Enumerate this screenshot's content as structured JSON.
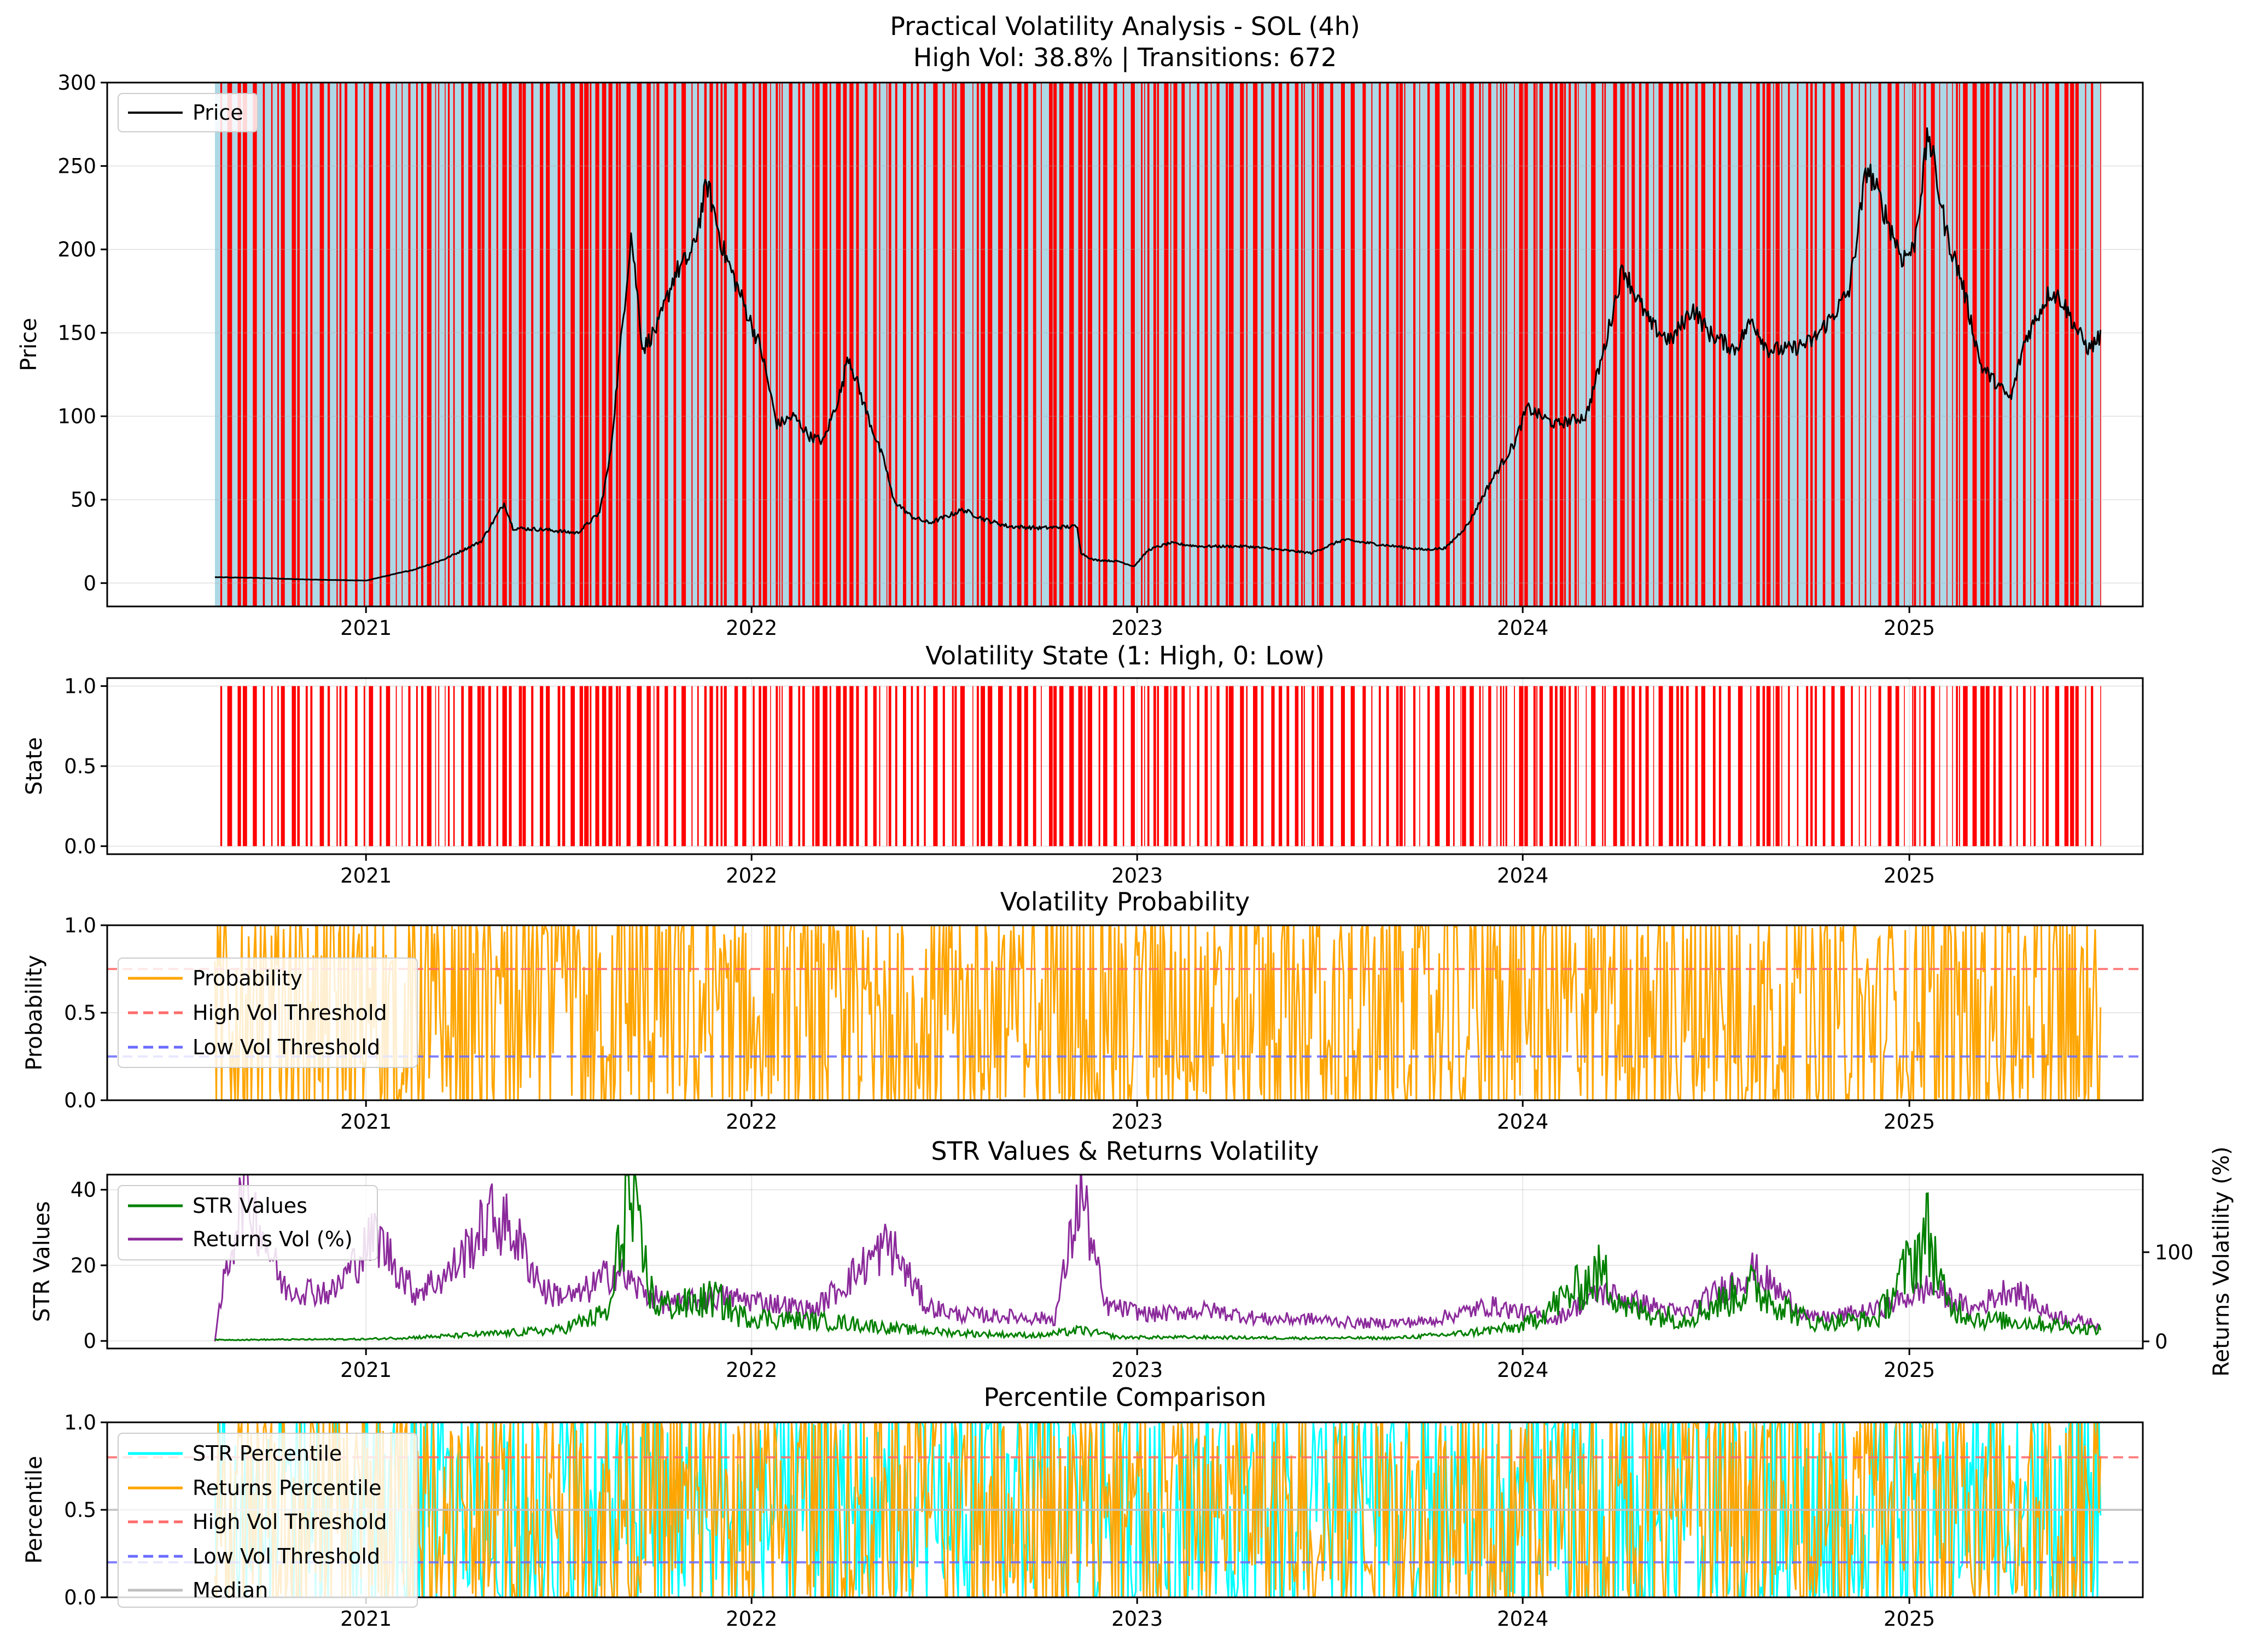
{
  "figure": {
    "title_line1": "Practical Volatility Analysis - SOL (4h)",
    "title_line2": "High Vol: 38.8% | Transitions: 672"
  },
  "colors": {
    "high_vol": "#ff0000",
    "low_vol": "#add8e6",
    "price": "#000000",
    "probability": "#ffa500",
    "high_threshold": "#ff6b6b",
    "low_threshold": "#6b6bff",
    "str_values": "#008000",
    "returns_vol": "#8b2a9b",
    "str_percentile": "#00ffff",
    "returns_percentile": "#ffa500",
    "median": "#c0c0c0"
  },
  "chart_data": [
    {
      "type": "line",
      "panel": "price",
      "title": "",
      "ylabel": "Price",
      "xlim": [
        "2020-05-01",
        "2025-08-10"
      ],
      "ylim": [
        -14,
        300
      ],
      "yticks": [
        0,
        50,
        100,
        150,
        200,
        250,
        300
      ],
      "xticks": [
        "2021",
        "2022",
        "2023",
        "2024",
        "2025"
      ],
      "background": "alternating high/low volatility regime shading",
      "legend": {
        "position": "upper-left",
        "entries": [
          "Price"
        ]
      },
      "series": [
        {
          "name": "Price",
          "x": [
            "2020-08-11",
            "2020-09-15",
            "2020-11-01",
            "2021-01-01",
            "2021-02-15",
            "2021-03-15",
            "2021-04-20",
            "2021-05-12",
            "2021-05-20",
            "2021-06-20",
            "2021-07-20",
            "2021-08-10",
            "2021-08-20",
            "2021-09-09",
            "2021-09-20",
            "2021-10-05",
            "2021-10-20",
            "2021-11-06",
            "2021-11-20",
            "2021-12-05",
            "2021-12-20",
            "2022-01-10",
            "2022-01-25",
            "2022-02-10",
            "2022-02-25",
            "2022-03-10",
            "2022-03-28",
            "2022-04-02",
            "2022-04-20",
            "2022-05-08",
            "2022-05-15",
            "2022-06-01",
            "2022-06-18",
            "2022-07-05",
            "2022-07-20",
            "2022-08-10",
            "2022-09-01",
            "2022-10-01",
            "2022-11-05",
            "2022-11-09",
            "2022-11-20",
            "2022-12-15",
            "2022-12-29",
            "2023-01-12",
            "2023-02-01",
            "2023-03-01",
            "2023-04-15",
            "2023-06-15",
            "2023-07-15",
            "2023-08-20",
            "2023-09-30",
            "2023-10-20",
            "2023-11-10",
            "2023-12-01",
            "2023-12-25",
            "2024-01-05",
            "2024-02-01",
            "2024-03-01",
            "2024-03-18",
            "2024-04-05",
            "2024-04-15",
            "2024-05-01",
            "2024-05-20",
            "2024-06-10",
            "2024-06-25",
            "2024-07-20",
            "2024-08-05",
            "2024-08-20",
            "2024-09-10",
            "2024-10-01",
            "2024-10-20",
            "2024-11-05",
            "2024-11-22",
            "2024-12-10",
            "2024-12-25",
            "2025-01-05",
            "2025-01-19",
            "2025-02-05",
            "2025-02-20",
            "2025-03-10",
            "2025-04-07",
            "2025-04-20",
            "2025-05-14",
            "2025-05-25",
            "2025-06-10",
            "2025-06-20",
            "2025-07-01"
          ],
          "values": [
            3.5,
            3.2,
            2.2,
            1.5,
            8,
            14,
            25,
            48,
            33,
            32,
            30,
            42,
            75,
            210,
            140,
            155,
            185,
            198,
            240,
            200,
            175,
            140,
            95,
            100,
            88,
            85,
            118,
            138,
            102,
            70,
            50,
            40,
            36,
            40,
            44,
            38,
            34,
            33,
            34,
            18,
            14,
            13,
            10,
            20,
            24,
            22,
            22,
            18,
            26,
            23,
            20,
            21,
            35,
            60,
            85,
            105,
            95,
            100,
            140,
            190,
            175,
            155,
            145,
            165,
            150,
            140,
            158,
            140,
            140,
            145,
            160,
            175,
            250,
            220,
            195,
            200,
            270,
            210,
            180,
            130,
            110,
            145,
            175,
            170,
            150,
            140,
            148
          ]
        }
      ]
    },
    {
      "type": "bar",
      "panel": "state",
      "title": "Volatility State (1: High, 0: Low)",
      "ylabel": "State",
      "ylim": [
        -0.05,
        1.05
      ],
      "yticks": [
        0.0,
        0.5,
        1.0
      ],
      "xticks": [
        "2021",
        "2022",
        "2023",
        "2024",
        "2025"
      ],
      "series": [
        {
          "name": "",
          "values": "binary high/low regime state per 4h bar (1 = high volatility, shown as red bars)"
        }
      ]
    },
    {
      "type": "line",
      "panel": "probability",
      "title": "Volatility Probability",
      "ylabel": "Probability",
      "ylim": [
        0,
        1
      ],
      "yticks": [
        0.0,
        0.5,
        1.0
      ],
      "xticks": [
        "2021",
        "2022",
        "2023",
        "2024",
        "2025"
      ],
      "legend": {
        "position": "upper-left",
        "entries": [
          "Probability",
          "High Vol Threshold",
          "Low Vol Threshold"
        ]
      },
      "series": [
        {
          "name": "Probability",
          "values": "oscillates rapidly between 0 and 1"
        },
        {
          "name": "High Vol Threshold",
          "constant": 0.75
        },
        {
          "name": "Low Vol Threshold",
          "constant": 0.25
        }
      ]
    },
    {
      "type": "line",
      "panel": "str",
      "title": "STR Values & Returns Volatility",
      "ylabel": "STR Values",
      "ylabel_right": "Returns Volatility (%)",
      "ylim": [
        -2,
        44
      ],
      "ylim_right": [
        -8,
        187
      ],
      "yticks": [
        0,
        20,
        40
      ],
      "yticks_right": [
        0,
        100
      ],
      "xticks": [
        "2021",
        "2022",
        "2023",
        "2024",
        "2025"
      ],
      "legend": {
        "position": "upper-left",
        "entries": [
          "STR Values",
          "Returns Vol (%)"
        ]
      },
      "series": [
        {
          "name": "STR Values",
          "x": [
            "2020-08-11",
            "2021-01-01",
            "2021-04-01",
            "2021-07-01",
            "2021-08-20",
            "2021-09-05",
            "2021-10-01",
            "2021-11-01",
            "2021-11-28",
            "2021-12-20",
            "2022-02-01",
            "2022-04-01",
            "2022-06-01",
            "2022-08-01",
            "2022-10-01",
            "2022-11-09",
            "2022-12-15",
            "2023-03-01",
            "2023-06-01",
            "2023-09-01",
            "2023-11-01",
            "2024-01-01",
            "2024-03-15",
            "2024-04-10",
            "2024-06-01",
            "2024-08-05",
            "2024-10-01",
            "2024-12-01",
            "2025-01-19",
            "2025-02-05",
            "2025-03-10",
            "2025-05-01",
            "2025-07-01"
          ],
          "values": [
            0.3,
            0.5,
            1.5,
            3,
            8,
            41,
            10,
            10,
            12,
            7,
            6,
            5,
            3,
            2,
            1.5,
            3,
            1,
            1,
            0.8,
            0.8,
            2,
            4,
            19,
            9,
            6,
            15,
            5,
            6,
            30,
            10,
            6,
            5,
            3
          ]
        },
        {
          "name": "Returns Vol (%)",
          "x": [
            "2020-08-11",
            "2020-08-20",
            "2020-09-08",
            "2020-10-15",
            "2020-12-01",
            "2021-01-10",
            "2021-02-15",
            "2021-03-20",
            "2021-04-30",
            "2021-05-19",
            "2021-06-20",
            "2021-07-20",
            "2021-08-25",
            "2021-09-15",
            "2021-10-15",
            "2021-12-01",
            "2022-01-10",
            "2022-03-01",
            "2022-05-11",
            "2022-06-15",
            "2022-07-15",
            "2022-09-01",
            "2022-10-15",
            "2022-11-09",
            "2022-12-01",
            "2023-01-15",
            "2023-03-10",
            "2023-05-01",
            "2023-06-15",
            "2023-08-01",
            "2023-10-01",
            "2023-12-01",
            "2024-02-01",
            "2024-03-15",
            "2024-04-15",
            "2024-06-01",
            "2024-08-05",
            "2024-10-01",
            "2024-12-01",
            "2025-01-20",
            "2025-03-01",
            "2025-04-07",
            "2025-05-15",
            "2025-07-01"
          ],
          "values": [
            0,
            70,
            175,
            60,
            55,
            120,
            55,
            75,
            140,
            125,
            55,
            50,
            80,
            60,
            40,
            50,
            45,
            35,
            110,
            40,
            30,
            28,
            25,
            170,
            40,
            30,
            35,
            25,
            25,
            20,
            22,
            40,
            25,
            55,
            45,
            30,
            80,
            25,
            35,
            60,
            35,
            60,
            30,
            18
          ]
        }
      ]
    },
    {
      "type": "line",
      "panel": "percentile",
      "title": "Percentile Comparison",
      "ylabel": "Percentile",
      "ylim": [
        0,
        1
      ],
      "yticks": [
        0.0,
        0.5,
        1.0
      ],
      "xticks": [
        "2021",
        "2022",
        "2023",
        "2024",
        "2025"
      ],
      "legend": {
        "position": "upper-left",
        "entries": [
          "STR Percentile",
          "Returns Percentile",
          "High Vol Threshold",
          "Low Vol Threshold",
          "Median"
        ]
      },
      "series": [
        {
          "name": "STR Percentile",
          "values": "oscillates between 0 and 1"
        },
        {
          "name": "Returns Percentile",
          "values": "oscillates between 0 and 1"
        },
        {
          "name": "High Vol Threshold",
          "constant": 0.8
        },
        {
          "name": "Low Vol Threshold",
          "constant": 0.2
        },
        {
          "name": "Median",
          "constant": 0.5
        }
      ]
    }
  ]
}
